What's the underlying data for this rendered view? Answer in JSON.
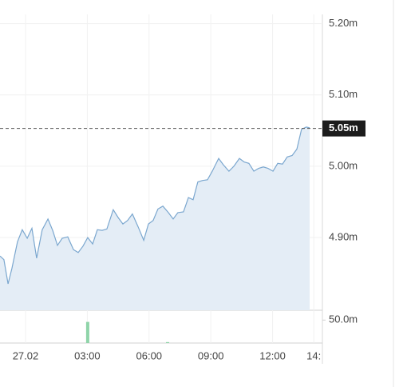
{
  "chart_data": {
    "type": "line",
    "series": [
      {
        "color": "#7ba7cf",
        "fill": "#e4edf6",
        "x": [
          -1.24,
          -1.05,
          -0.85,
          -0.66,
          -0.39,
          -0.16,
          0.08,
          0.31,
          0.54,
          0.81,
          1.09,
          1.32,
          1.55,
          1.78,
          2.05,
          2.33,
          2.56,
          2.79,
          3.02,
          3.26,
          3.49,
          3.72,
          3.95,
          4.26,
          4.5,
          4.73,
          4.96,
          5.19,
          5.47,
          5.74,
          5.97,
          6.2,
          6.43,
          6.67,
          6.94,
          7.17,
          7.4,
          7.67,
          7.91,
          8.14,
          8.37,
          8.6,
          8.84,
          9.07,
          9.38,
          9.61,
          9.88,
          10.12,
          10.39,
          10.62,
          10.85,
          11.09,
          11.32,
          11.55,
          11.78,
          12.02,
          12.25,
          12.48,
          12.71,
          12.95,
          13.18,
          13.41,
          13.64,
          13.8
        ],
        "values": [
          4.874,
          4.869,
          4.835,
          4.857,
          4.894,
          4.911,
          4.899,
          4.913,
          4.871,
          4.911,
          4.926,
          4.91,
          4.889,
          4.899,
          4.901,
          4.883,
          4.879,
          4.888,
          4.9,
          4.891,
          4.911,
          4.91,
          4.912,
          4.939,
          4.928,
          4.919,
          4.924,
          4.933,
          4.915,
          4.896,
          4.919,
          4.924,
          4.94,
          4.944,
          4.935,
          4.926,
          4.935,
          4.936,
          4.956,
          4.953,
          4.978,
          4.98,
          4.981,
          4.993,
          5.011,
          5.002,
          4.993,
          5.0,
          5.011,
          5.006,
          5.004,
          4.993,
          4.997,
          4.999,
          4.997,
          4.993,
          5.004,
          5.003,
          5.013,
          5.015,
          5.024,
          5.052,
          5.055,
          5.054
        ]
      }
    ],
    "xlim": [
      -1.24,
      14.42
    ],
    "xticks": [
      {
        "value": 0,
        "label": "27.02"
      },
      {
        "value": 3,
        "label": "03:00"
      },
      {
        "value": 6,
        "label": "06:00"
      },
      {
        "value": 9,
        "label": "09:00"
      },
      {
        "value": 12,
        "label": "12:00"
      },
      {
        "value": 14,
        "label": "14:"
      }
    ],
    "ylim": [
      4.798,
      5.213
    ],
    "yticks": [
      {
        "value": 4.9,
        "label": "4.90m"
      },
      {
        "value": 5.0,
        "label": "5.00m"
      },
      {
        "value": 5.1,
        "label": "5.10m"
      },
      {
        "value": 5.2,
        "label": "5.20m"
      }
    ],
    "last_price": {
      "value": 5.053,
      "label": "5.05m",
      "color": "#1c1c1c"
    },
    "volume": {
      "color": "#8fd4a9",
      "x": [
        3.02,
        6.9
      ],
      "values": [
        46,
        2
      ],
      "ylim": [
        0,
        71.4
      ],
      "yticks": [
        {
          "value": 50,
          "label": "50.0m"
        }
      ]
    },
    "grid": true
  }
}
